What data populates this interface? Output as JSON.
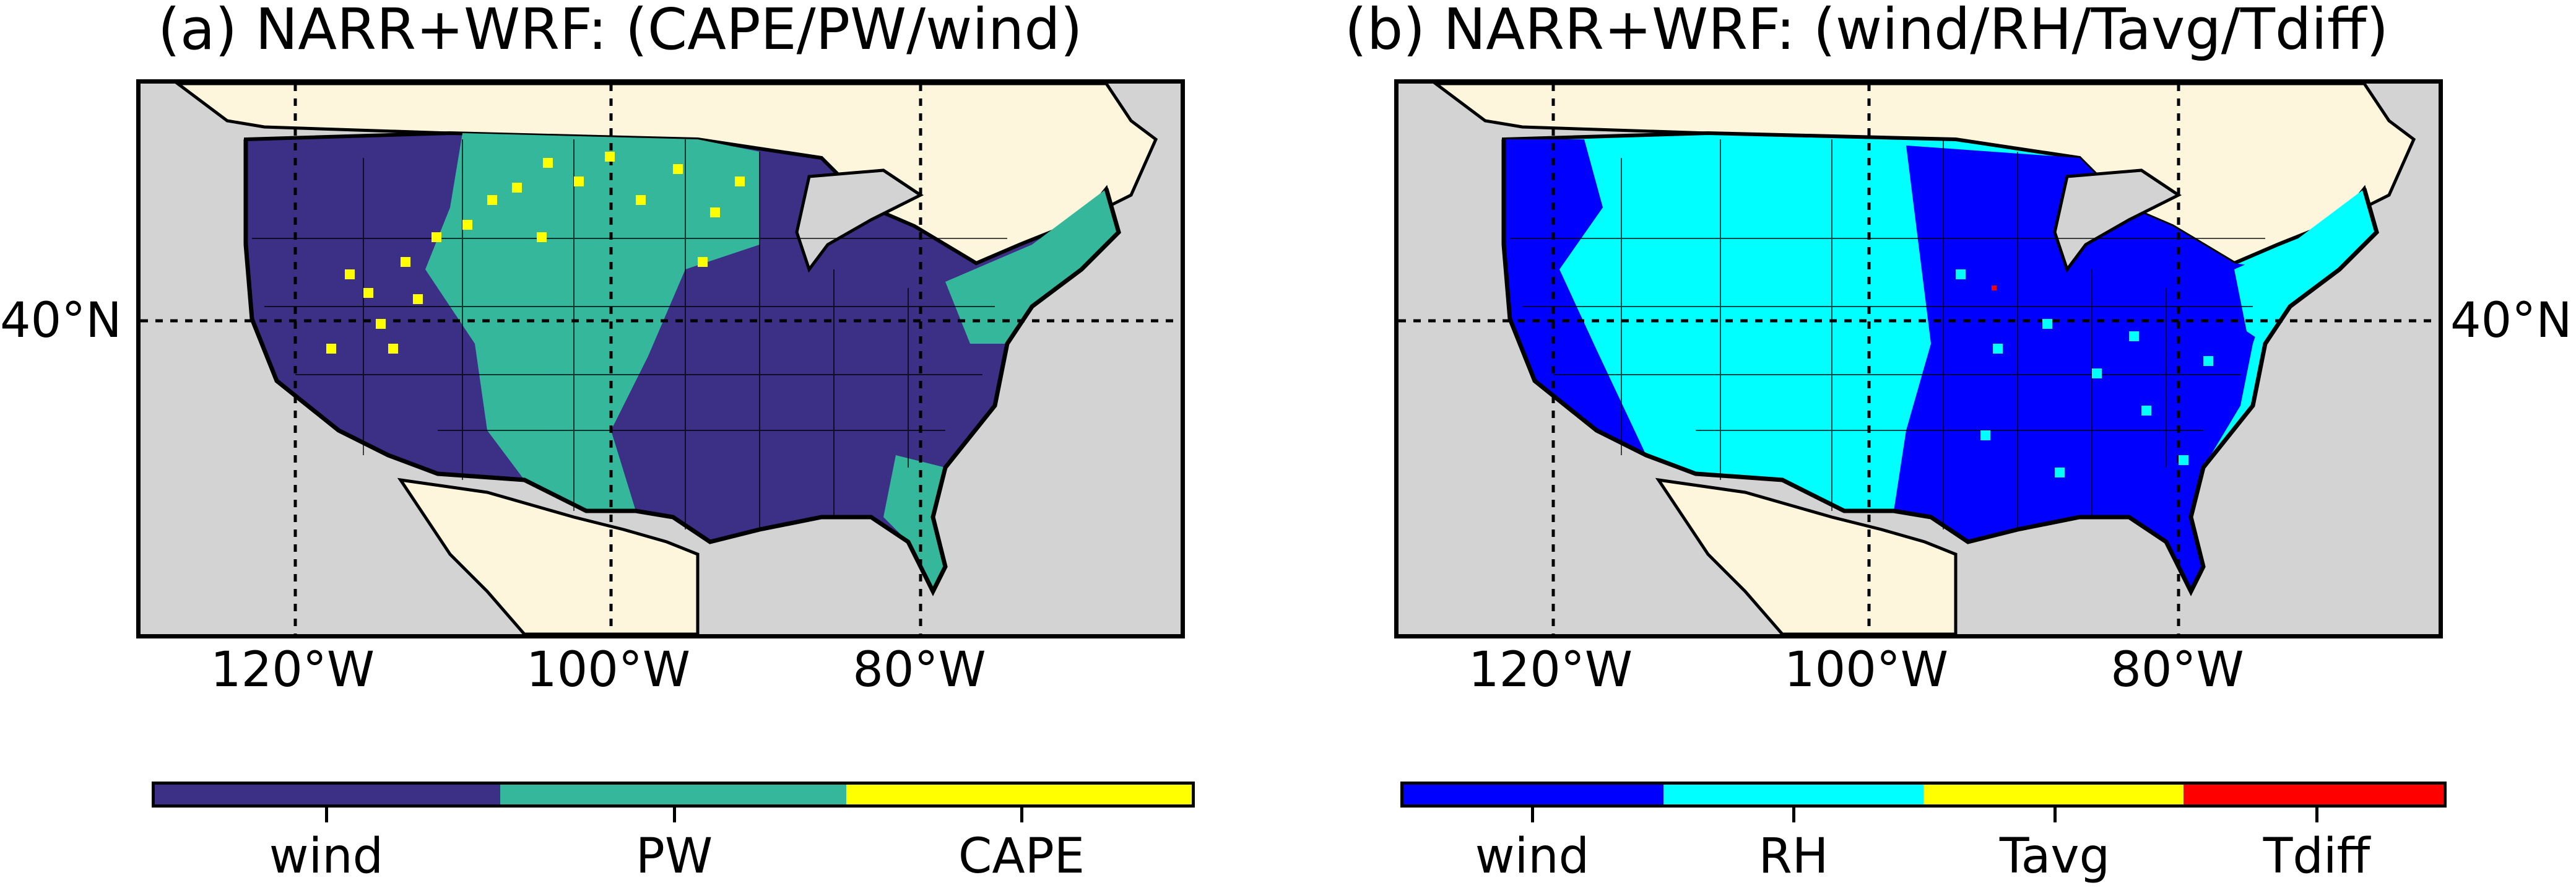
{
  "panels": [
    {
      "title": "(a) NARR+WRF: (CAPE/PW/wind)",
      "lat_label": "40°N",
      "lon_labels": [
        "120°W",
        "100°W",
        "80°W"
      ],
      "legend": [
        {
          "label": "wind",
          "color": "#3b2f86"
        },
        {
          "label": "PW",
          "color": "#35b79b"
        },
        {
          "label": "CAPE",
          "color": "#ffff00"
        }
      ],
      "speckle_color": "#ffff00"
    },
    {
      "title": "(b) NARR+WRF: (wind/RH/Tavg/Tdiff)",
      "lat_label": "40°N",
      "lon_labels": [
        "120°W",
        "100°W",
        "80°W"
      ],
      "legend": [
        {
          "label": "wind",
          "color": "#0000ff"
        },
        {
          "label": "RH",
          "color": "#00ffff"
        },
        {
          "label": "Tavg",
          "color": "#ffff00"
        },
        {
          "label": "Tdiff",
          "color": "#ff0000"
        }
      ],
      "speckle_color": "#00ffff"
    }
  ],
  "colors": {
    "ocean": "#d3d3d3",
    "land": "#fdf5dc",
    "lakes": "#d3d3d3"
  }
}
